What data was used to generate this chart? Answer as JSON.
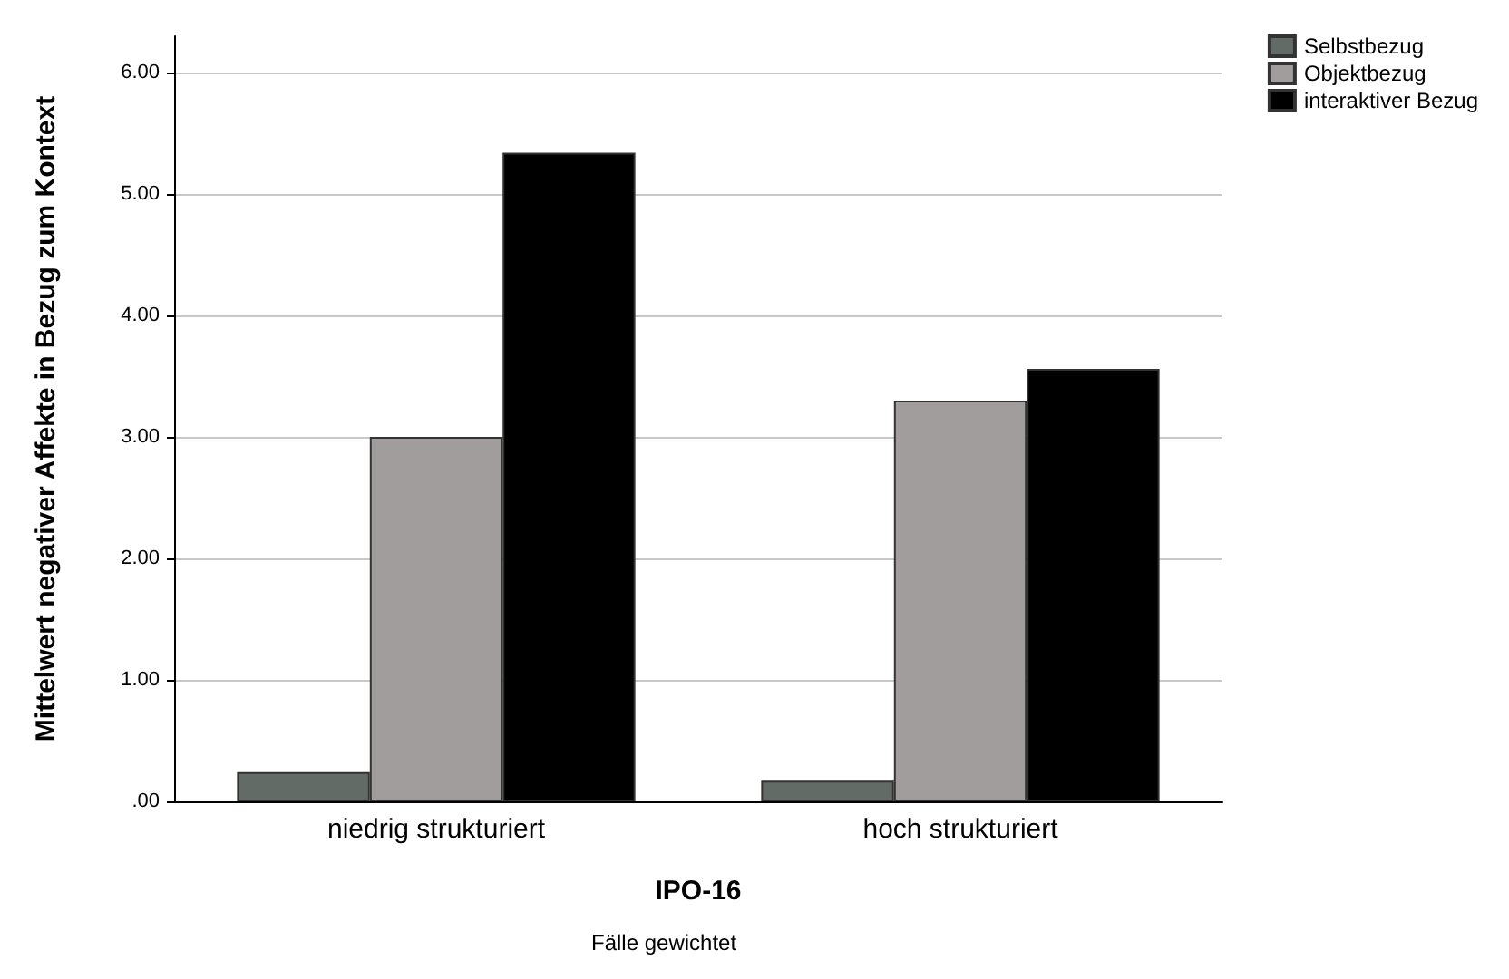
{
  "chart_data": {
    "type": "bar",
    "xlabel": "IPO-16",
    "ylabel": "Mittelwert negativer Affekte in Bezug zum Kontext",
    "categories": [
      "niedrig strukturiert",
      "hoch strukturiert"
    ],
    "series": [
      {
        "name": "Selbstbezug",
        "color": "#636b67",
        "values": [
          0.24,
          0.17
        ]
      },
      {
        "name": "Objektbezug",
        "color": "#a19d9c",
        "values": [
          3.0,
          3.3
        ]
      },
      {
        "name": "interaktiver Bezug",
        "color": "#000000",
        "values": [
          5.34,
          3.56
        ]
      }
    ],
    "ylim": [
      0,
      6.3
    ],
    "yticks": [
      {
        "value": 0,
        "label": ".00"
      },
      {
        "value": 1,
        "label": "1.00"
      },
      {
        "value": 2,
        "label": "2.00"
      },
      {
        "value": 3,
        "label": "3.00"
      },
      {
        "value": 4,
        "label": "4.00"
      },
      {
        "value": 5,
        "label": "5.00"
      },
      {
        "value": 6,
        "label": "6.00"
      }
    ],
    "grid": "y",
    "legend": "top right",
    "annotations": [
      "Fälle gewichtet"
    ]
  }
}
